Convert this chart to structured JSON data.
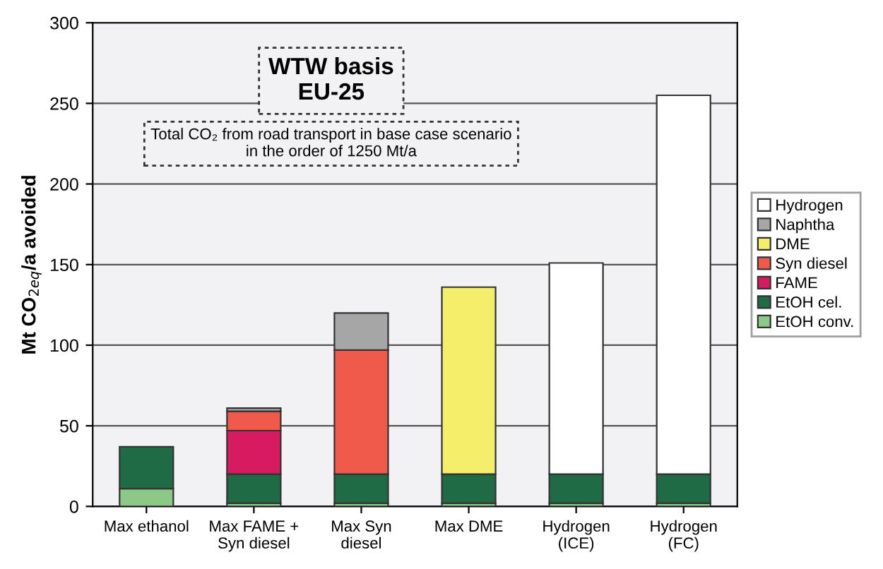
{
  "chart_data": {
    "type": "bar",
    "stacked": true,
    "ylabel": "Mt CO$_{2eq}$/a avoided",
    "categories": [
      "Max ethanol",
      "Max FAME +\nSyn diesel",
      "Max Syn\ndiesel",
      "Max DME",
      "Hydrogen\n(ICE)",
      "Hydrogen\n(FC)"
    ],
    "series": [
      {
        "name": "EtOH conv.",
        "color": "#8cc887",
        "values": [
          11,
          2,
          2,
          2,
          2,
          2
        ]
      },
      {
        "name": "EtOH cel.",
        "color": "#1e6b45",
        "values": [
          26,
          18,
          18,
          18,
          18,
          18
        ]
      },
      {
        "name": "FAME",
        "color": "#d81b60",
        "values": [
          null,
          27,
          null,
          null,
          null,
          null
        ]
      },
      {
        "name": "Syn diesel",
        "color": "#f05a4a",
        "values": [
          null,
          12,
          77,
          null,
          null,
          null
        ]
      },
      {
        "name": "DME",
        "color": "#f5ee6a",
        "values": [
          null,
          null,
          null,
          116,
          null,
          null
        ]
      },
      {
        "name": "Naphtha",
        "color": "#a6a6a6",
        "values": [
          null,
          2,
          23,
          null,
          null,
          null
        ]
      },
      {
        "name": "Hydrogen",
        "color": "#ffffff",
        "values": [
          null,
          null,
          null,
          null,
          131,
          235
        ]
      }
    ],
    "ylim": [
      0,
      300
    ],
    "yticks": [
      0,
      50,
      100,
      150,
      200,
      250,
      300
    ],
    "grid": "y",
    "legend": "right",
    "annotations": [
      "WTW basis\nEU-25",
      "Total CO₂ from road transport in base case scenario\nin the order of 1250 Mt/a"
    ]
  }
}
